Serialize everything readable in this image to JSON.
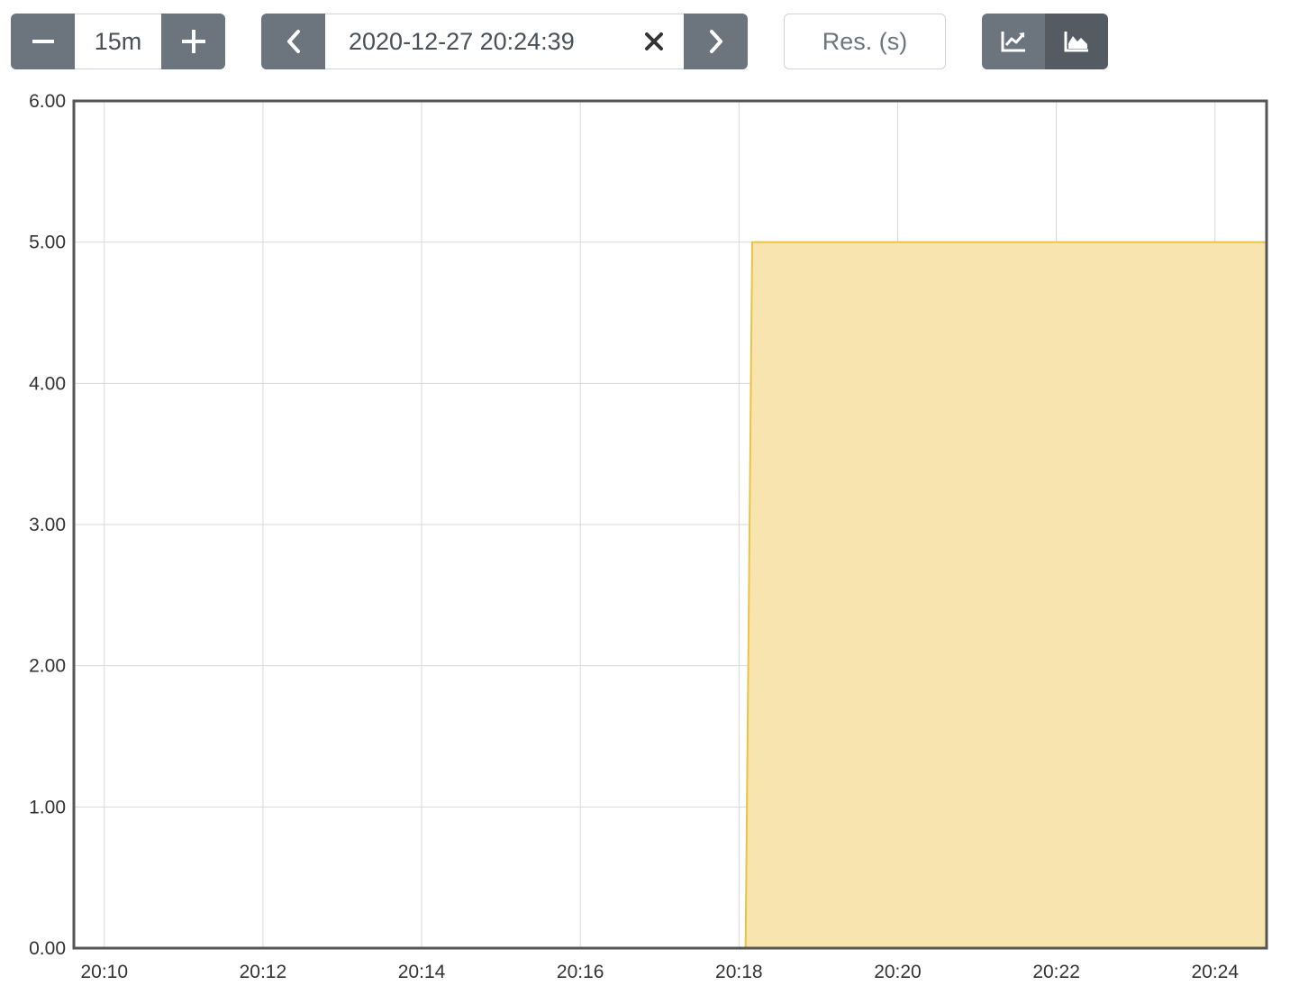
{
  "controls": {
    "range_value": "15m",
    "end_time_value": "2020-12-27 20:24:39",
    "resolution_placeholder": "Res. (s)"
  },
  "icons": {
    "decrease": "minus-icon",
    "increase": "plus-icon",
    "back": "chevron-left-icon",
    "clear": "close-icon",
    "forward": "chevron-right-icon",
    "line_mode": "line-chart-icon",
    "stacked_mode": "area-chart-icon"
  },
  "colors": {
    "button": "#6c757d",
    "button_active": "#545b62",
    "series_fill": "#f8e4ae",
    "series_line": "#edc240",
    "grid": "#d8d8d8",
    "frame": "#555555"
  },
  "chart_data": {
    "type": "area",
    "title": "",
    "xlabel": "",
    "ylabel": "",
    "ylim": [
      0,
      6
    ],
    "xlim": [
      "20:09:37",
      "20:24:39"
    ],
    "y_ticks": [
      "0.00",
      "1.00",
      "2.00",
      "3.00",
      "4.00",
      "5.00",
      "6.00"
    ],
    "x_ticks": [
      "20:10",
      "20:12",
      "20:14",
      "20:16",
      "20:18",
      "20:20",
      "20:22",
      "20:24"
    ],
    "grid": true,
    "legend": "none",
    "series": [
      {
        "x": [
          "20:18:00",
          "20:18:05",
          "20:18:10",
          "20:24:39"
        ],
        "y": [
          0,
          0,
          5,
          5
        ]
      }
    ]
  }
}
